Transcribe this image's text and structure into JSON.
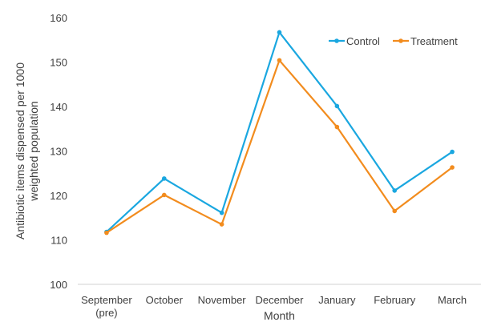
{
  "chart_data": {
    "type": "line",
    "title": "",
    "xlabel": "Month",
    "ylabel": "Antibiotic items dispensed per 1000 weighted population",
    "ylabel_lines": [
      "Antibiotic items dispensed per 1000",
      "weighted population"
    ],
    "categories": [
      "September (pre)",
      "October",
      "November",
      "December",
      "January",
      "February",
      "March"
    ],
    "category_lines": [
      [
        "September",
        "(pre)"
      ],
      [
        "October"
      ],
      [
        "November"
      ],
      [
        "December"
      ],
      [
        "January"
      ],
      [
        "February"
      ],
      [
        "March"
      ]
    ],
    "ylim": [
      100,
      160
    ],
    "yticks": [
      100,
      110,
      120,
      130,
      140,
      150,
      160
    ],
    "grid": false,
    "legend_position": "top-right",
    "series": [
      {
        "name": "Control",
        "color": "#1aa7e0",
        "values": [
          111.8,
          123.8,
          116.1,
          156.7,
          140.1,
          121.1,
          129.8
        ]
      },
      {
        "name": "Treatment",
        "color": "#f28c1e",
        "values": [
          111.6,
          120.1,
          113.5,
          150.4,
          135.4,
          116.5,
          126.3
        ]
      }
    ]
  }
}
